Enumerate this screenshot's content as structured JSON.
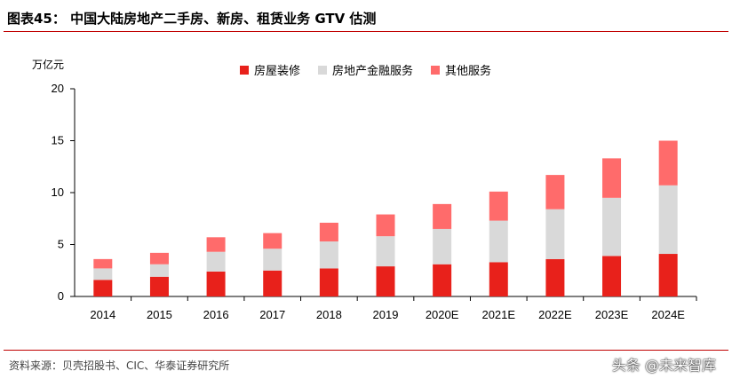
{
  "header": {
    "title": "图表45： 中国大陆房地产二手房、新房、租赁业务 GTV 估测"
  },
  "footer": {
    "source": "资料来源：贝壳招股书、CIC、华泰证券研究所",
    "watermark": "头条 @未来智库"
  },
  "colors": {
    "accent": "#c00000"
  },
  "chart_data": {
    "type": "bar",
    "stacked": true,
    "unit_label": "万亿元",
    "categories": [
      "2014",
      "2015",
      "2016",
      "2017",
      "2018",
      "2019",
      "2020E",
      "2021E",
      "2022E",
      "2023E",
      "2024E"
    ],
    "series": [
      {
        "name": "房屋装修",
        "color": "#e8211b",
        "values": [
          1.6,
          1.9,
          2.4,
          2.5,
          2.7,
          2.9,
          3.1,
          3.3,
          3.6,
          3.9,
          4.1
        ]
      },
      {
        "name": "房地产金融服务",
        "color": "#d9d9d9",
        "values": [
          1.1,
          1.2,
          1.9,
          2.1,
          2.6,
          2.9,
          3.4,
          4.0,
          4.8,
          5.6,
          6.6
        ]
      },
      {
        "name": "其他服务",
        "color": "#ff6b6b",
        "values": [
          0.9,
          1.1,
          1.4,
          1.5,
          1.8,
          2.1,
          2.4,
          2.8,
          3.3,
          3.8,
          4.3
        ]
      }
    ],
    "y_ticks": [
      0,
      5,
      10,
      15,
      20
    ],
    "ylim": [
      0,
      20
    ],
    "legend": "top-center",
    "grid": false
  }
}
